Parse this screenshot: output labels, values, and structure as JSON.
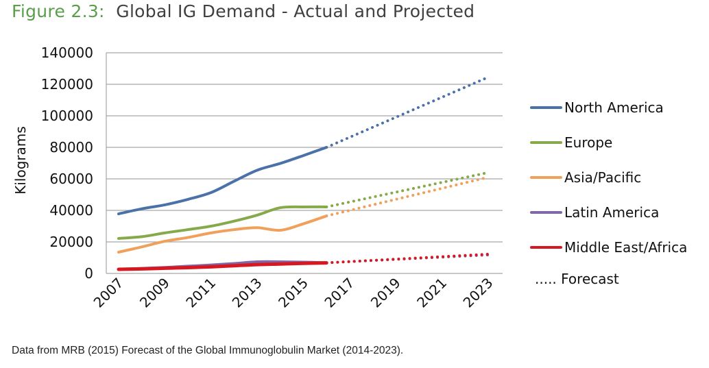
{
  "figure": {
    "title_prefix": "Figure 2.3:",
    "title_text": "Global IG Demand - Actual and Projected",
    "footnote": "Data from MRB (2015) Forecast of the Global Immunoglobulin Market (2014-2023).",
    "colors": {
      "title_prefix": "#5a9e4a",
      "grid": "#a6a6a6"
    }
  },
  "chart_data": {
    "type": "line",
    "title": "Global IG Demand - Actual and Projected",
    "xlabel": "",
    "ylabel": "Kilograms",
    "ylim": [
      0,
      140000
    ],
    "yticks": [
      0,
      20000,
      40000,
      60000,
      80000,
      100000,
      120000,
      140000
    ],
    "ytick_labels": [
      "0",
      "20000",
      "40000",
      "60000",
      "80000",
      "100000",
      "120000",
      "140000"
    ],
    "xlim": [
      2007,
      2023
    ],
    "xticks": [
      2007,
      2009,
      2011,
      2013,
      2015,
      2017,
      2019,
      2021,
      2023
    ],
    "xtick_labels": [
      "2007",
      "2009",
      "2011",
      "2013",
      "2015",
      "2017",
      "2019",
      "2021",
      "2023"
    ],
    "grid": "horizontal",
    "legend_position": "right",
    "actual_years": [
      2007,
      2008,
      2009,
      2010,
      2011,
      2012,
      2013,
      2014,
      2015,
      2016
    ],
    "forecast_years": [
      2016,
      2023
    ],
    "series": [
      {
        "name": "North America",
        "color": "#4a72a8",
        "actual": [
          37800,
          41000,
          43500,
          47000,
          51300,
          58500,
          65500,
          69800,
          74800,
          80000
        ],
        "forecast": [
          80000,
          124500
        ]
      },
      {
        "name": "Europe",
        "color": "#86a94a",
        "actual": [
          22200,
          23300,
          25700,
          27800,
          30000,
          33200,
          37000,
          41700,
          42200,
          42200
        ],
        "forecast": [
          42200,
          64000
        ]
      },
      {
        "name": "Asia/Pacific",
        "color": "#f0a05a",
        "actual": [
          13500,
          16800,
          20400,
          22800,
          25700,
          27800,
          29000,
          27400,
          31500,
          36500
        ],
        "forecast": [
          36500,
          61000
        ]
      },
      {
        "name": "Latin America",
        "color": "#8068a8",
        "actual": [
          2700,
          3200,
          3800,
          4600,
          5400,
          6300,
          7400,
          7400,
          7200,
          6800
        ],
        "forecast": [
          6800,
          11700
        ]
      },
      {
        "name": "Middle East/Africa",
        "color": "#d81820",
        "actual": [
          2600,
          2900,
          3300,
          3700,
          4200,
          4900,
          5600,
          6000,
          6400,
          6700
        ],
        "forecast": [
          6700,
          12200
        ]
      }
    ],
    "forecast_legend_label": "..... Forecast"
  }
}
